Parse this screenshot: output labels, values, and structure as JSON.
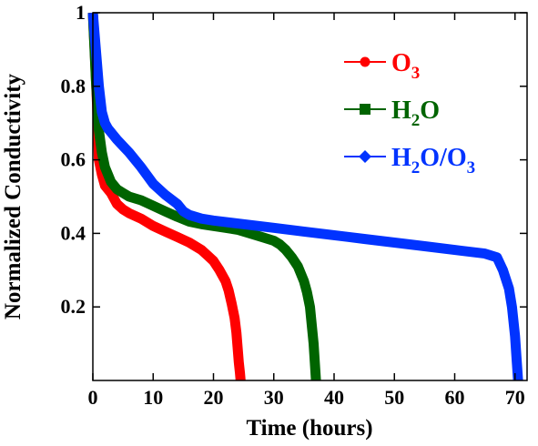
{
  "chart_data": {
    "type": "line",
    "title": "",
    "xlabel": "Time (hours)",
    "ylabel": "Normalized Conductivity",
    "xlim": [
      0,
      72
    ],
    "ylim": [
      0,
      1
    ],
    "x_ticks": [
      0,
      10,
      20,
      30,
      40,
      50,
      60,
      70
    ],
    "y_ticks": [
      0.2,
      0.4,
      0.6,
      0.8,
      1
    ],
    "x_tick_labels": [
      "0",
      "10",
      "20",
      "30",
      "40",
      "50",
      "60",
      "70"
    ],
    "y_tick_labels": [
      "0.2",
      "0.4",
      "0.6",
      "0.8",
      "1"
    ],
    "grid": false,
    "legend_position": "top-right",
    "series": [
      {
        "name": "O3",
        "legend_parts": [
          {
            "text": "O",
            "sub": false
          },
          {
            "text": "3",
            "sub": true
          }
        ],
        "color": "#ff0000",
        "marker": "circle",
        "x": [
          0,
          0.3,
          0.7,
          1,
          1.5,
          2,
          3,
          4,
          5,
          6,
          8,
          10,
          12,
          14,
          16,
          18,
          19,
          20,
          21,
          22,
          22.5,
          23,
          23.5,
          23.8,
          24,
          24.2,
          24.4,
          24.5
        ],
        "y": [
          1.0,
          0.9,
          0.75,
          0.6,
          0.56,
          0.53,
          0.51,
          0.48,
          0.465,
          0.455,
          0.44,
          0.42,
          0.405,
          0.39,
          0.375,
          0.355,
          0.34,
          0.325,
          0.3,
          0.27,
          0.245,
          0.21,
          0.17,
          0.13,
          0.09,
          0.05,
          0.02,
          0.0
        ]
      },
      {
        "name": "H2O",
        "legend_parts": [
          {
            "text": "H",
            "sub": false
          },
          {
            "text": "2",
            "sub": true
          },
          {
            "text": "O",
            "sub": false
          }
        ],
        "color": "#006400",
        "marker": "square",
        "x": [
          0,
          0.5,
          1,
          1.5,
          2,
          3,
          4,
          5,
          6,
          8,
          10,
          12,
          14,
          16,
          18,
          20,
          22,
          24,
          26,
          28,
          30,
          31,
          32,
          33,
          34,
          35,
          35.5,
          36,
          36.3,
          36.6,
          36.8,
          37
        ],
        "y": [
          1.0,
          0.82,
          0.68,
          0.62,
          0.58,
          0.54,
          0.52,
          0.51,
          0.5,
          0.49,
          0.475,
          0.46,
          0.445,
          0.432,
          0.425,
          0.42,
          0.415,
          0.41,
          0.4,
          0.39,
          0.38,
          0.37,
          0.355,
          0.335,
          0.31,
          0.27,
          0.24,
          0.2,
          0.15,
          0.1,
          0.05,
          0.0
        ]
      },
      {
        "name": "H2O/O3",
        "legend_parts": [
          {
            "text": "H",
            "sub": false
          },
          {
            "text": "2",
            "sub": true
          },
          {
            "text": "O/O",
            "sub": false
          },
          {
            "text": "3",
            "sub": true
          }
        ],
        "color": "#0033ff",
        "marker": "diamond",
        "x": [
          0,
          0.5,
          1,
          1.5,
          2,
          2.5,
          3,
          4,
          6,
          8,
          10,
          12,
          14,
          15,
          16,
          18,
          20,
          25,
          30,
          35,
          40,
          45,
          50,
          55,
          60,
          65,
          67,
          68,
          69,
          69.5,
          70,
          70.3,
          70.5
        ],
        "y": [
          1.0,
          0.9,
          0.8,
          0.73,
          0.7,
          0.685,
          0.675,
          0.655,
          0.62,
          0.58,
          0.535,
          0.505,
          0.48,
          0.46,
          0.45,
          0.44,
          0.435,
          0.425,
          0.415,
          0.405,
          0.395,
          0.385,
          0.375,
          0.365,
          0.355,
          0.345,
          0.335,
          0.3,
          0.25,
          0.2,
          0.12,
          0.05,
          0.0
        ]
      }
    ]
  }
}
